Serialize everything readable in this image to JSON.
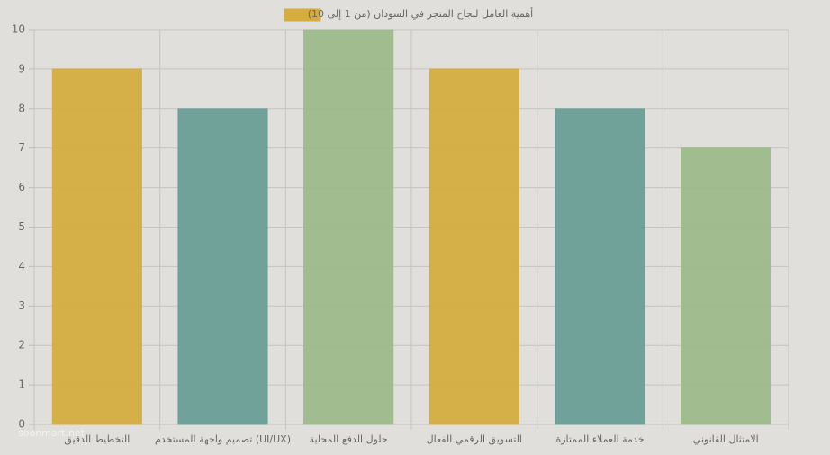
{
  "chart_data": {
    "type": "bar",
    "categories": [
      "التخطيط الدقيق",
      "تصميم واجهة المستخدم (UI/UX)",
      "حلول الدفع المحلية",
      "التسويق الرقمي الفعال",
      "خدمة العملاء الممتازة",
      "الامتثال القانوني"
    ],
    "series": [
      {
        "name": "أهمية العامل لنجاح المتجر في السودان (من 1 إلى 10)",
        "color": "#d4ac3f",
        "colors": [
          "#d4ac3f",
          "#6a9e96",
          "#9db98a",
          "#d4ac3f",
          "#6a9e96",
          "#9db98a"
        ],
        "values": [
          9,
          8,
          10,
          9,
          8,
          7
        ]
      }
    ],
    "ylim": [
      0,
      10
    ],
    "yticks": [
      0,
      1,
      2,
      3,
      4,
      5,
      6,
      7,
      8,
      9,
      10
    ],
    "grid": true,
    "watermark": "soonmart.net"
  }
}
